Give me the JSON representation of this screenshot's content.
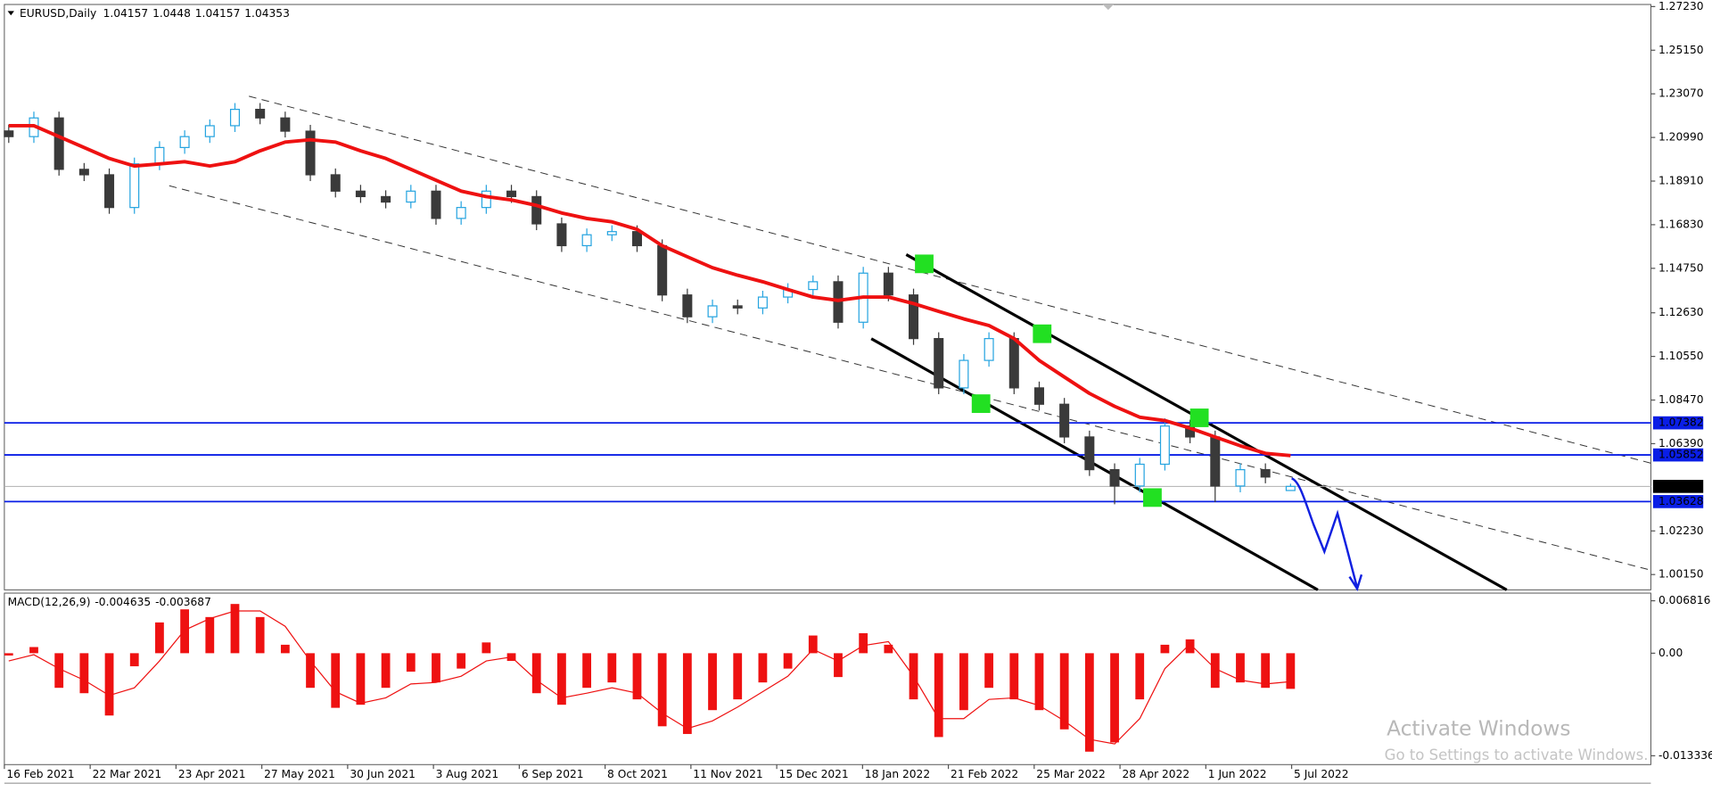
{
  "chart_data": {
    "type": "candlestick",
    "symbol": "EURUSD,Daily",
    "up_color": "#26a4e0",
    "down_color": "#3a3a3a",
    "open": [
      1.213,
      1.2103,
      1.2192,
      1.1947,
      1.1921,
      1.1765,
      1.1973,
      1.2051,
      1.2103,
      1.2155,
      1.2233,
      1.2192,
      1.2129,
      1.1921,
      1.1843,
      1.1817,
      1.1791,
      1.1843,
      1.1713,
      1.1765,
      1.1843,
      1.1817,
      1.1687,
      1.1583,
      1.1635,
      1.165,
      1.1583,
      1.1348,
      1.1244,
      1.1296,
      1.1286,
      1.1338,
      1.1374,
      1.1411,
      1.1218,
      1.1452,
      1.1348,
      1.114,
      1.0905,
      1.1036,
      1.114,
      1.0905,
      1.0827,
      1.0671,
      1.0515,
      1.0437,
      1.0541,
      1.0723,
      1.0671,
      1.0437,
      1.0515,
      1.04157
    ],
    "high": [
      1.216,
      1.2222,
      1.2222,
      1.1977,
      1.1951,
      1.2003,
      1.2081,
      1.2133,
      1.2185,
      1.2263,
      1.2263,
      1.2222,
      1.2159,
      1.1951,
      1.1873,
      1.1847,
      1.1873,
      1.1873,
      1.1795,
      1.1873,
      1.1873,
      1.1847,
      1.1717,
      1.1665,
      1.168,
      1.168,
      1.1613,
      1.1378,
      1.1326,
      1.1326,
      1.1368,
      1.1404,
      1.1441,
      1.1441,
      1.1482,
      1.1482,
      1.1378,
      1.117,
      1.1066,
      1.117,
      1.117,
      1.0935,
      1.0857,
      1.0701,
      1.0545,
      1.0571,
      1.076,
      1.0753,
      1.0701,
      1.0545,
      1.0545,
      1.0448
    ],
    "low": [
      1.2073,
      1.2073,
      1.1917,
      1.1891,
      1.1735,
      1.1735,
      1.1943,
      1.2021,
      1.2073,
      1.2125,
      1.2162,
      1.2099,
      1.1891,
      1.1813,
      1.1787,
      1.1761,
      1.1761,
      1.1683,
      1.1683,
      1.1735,
      1.1787,
      1.1657,
      1.1553,
      1.1553,
      1.1605,
      1.1553,
      1.1318,
      1.1214,
      1.1214,
      1.1256,
      1.1256,
      1.1308,
      1.1344,
      1.1188,
      1.1188,
      1.1318,
      1.111,
      1.0875,
      1.0875,
      1.1006,
      1.0875,
      1.0797,
      1.0641,
      1.0485,
      1.035,
      1.0407,
      1.0511,
      1.0641,
      1.036,
      1.0407,
      1.045,
      1.04157
    ],
    "close": [
      1.2103,
      1.2192,
      1.1947,
      1.1921,
      1.1765,
      1.1973,
      1.2051,
      1.2103,
      1.2155,
      1.2233,
      1.2192,
      1.2129,
      1.1921,
      1.1843,
      1.1817,
      1.1791,
      1.1843,
      1.1713,
      1.1765,
      1.1843,
      1.1817,
      1.1687,
      1.1583,
      1.1635,
      1.165,
      1.1583,
      1.1348,
      1.1244,
      1.1296,
      1.1286,
      1.1338,
      1.1374,
      1.1411,
      1.1218,
      1.1452,
      1.1348,
      1.114,
      1.0905,
      1.1036,
      1.114,
      1.0905,
      1.0827,
      1.0671,
      1.0515,
      1.0437,
      1.0541,
      1.0723,
      1.0671,
      1.0437,
      1.0515,
      1.048,
      1.04353
    ],
    "moving_average": {
      "color": "#ee1111",
      "values": [
        1.2155,
        1.2155,
        1.2103,
        1.2051,
        1.1999,
        1.1963,
        1.1973,
        1.1983,
        1.1963,
        1.1983,
        1.2035,
        1.2077,
        1.2088,
        1.2077,
        1.2035,
        1.1999,
        1.1947,
        1.1895,
        1.1843,
        1.1817,
        1.1801,
        1.1775,
        1.1739,
        1.1713,
        1.1697,
        1.1661,
        1.1583,
        1.153,
        1.1478,
        1.1442,
        1.1411,
        1.1374,
        1.1338,
        1.1322,
        1.1338,
        1.1338,
        1.1307,
        1.127,
        1.1234,
        1.1202,
        1.114,
        1.1036,
        1.0957,
        1.0879,
        1.0817,
        1.0765,
        1.0749,
        1.0713,
        1.0671,
        1.0629,
        1.0593,
        1.0582
      ]
    },
    "levels": [
      {
        "value": 1.07382,
        "color": "#0a1ee6"
      },
      {
        "value": 1.05852,
        "color": "#0a1ee6"
      },
      {
        "value": 1.03628,
        "color": "#0a1ee6"
      }
    ],
    "ylim": [
      0.9942,
      1.2733
    ],
    "yticks": [
      {
        "value": 1.2723,
        "label": "1.27230"
      },
      {
        "value": 1.2515,
        "label": "1.25150"
      },
      {
        "value": 1.2307,
        "label": "1.23070"
      },
      {
        "value": 1.2099,
        "label": "1.20990"
      },
      {
        "value": 1.1891,
        "label": "1.18910"
      },
      {
        "value": 1.1683,
        "label": "1.16830"
      },
      {
        "value": 1.1475,
        "label": "1.14750"
      },
      {
        "value": 1.1263,
        "label": "1.12630"
      },
      {
        "value": 1.1055,
        "label": "1.10550"
      },
      {
        "value": 1.0847,
        "label": "1.08470"
      },
      {
        "value": 1.0639,
        "label": "1.06390"
      },
      {
        "value": 1.0223,
        "label": "1.02230"
      },
      {
        "value": 1.0015,
        "label": "1.00150"
      }
    ],
    "x_labels": [
      "16 Feb 2021",
      "22 Mar 2021",
      "23 Apr 2021",
      "27 May 2021",
      "30 Jun 2021",
      "3 Aug 2021",
      "6 Sep 2021",
      "8 Oct 2021",
      "11 Nov 2021",
      "15 Dec 2021",
      "18 Jan 2022",
      "21 Feb 2022",
      "25 Mar 2022",
      "28 Apr 2022",
      "1 Jun 2022",
      "5 Jul 2022"
    ],
    "macd": {
      "title": "MACD(12,26,9)",
      "color": "#ee1111",
      "histogram": [
        -0.0003,
        0.0008,
        -0.0045,
        -0.0052,
        -0.0081,
        -0.0017,
        0.004,
        0.0057,
        0.0047,
        0.0064,
        0.0047,
        0.0011,
        -0.0045,
        -0.0071,
        -0.0067,
        -0.0045,
        -0.0024,
        -0.0038,
        -0.002,
        0.0014,
        -0.001,
        -0.0052,
        -0.0067,
        -0.0045,
        -0.0038,
        -0.006,
        -0.0095,
        -0.0105,
        -0.0074,
        -0.006,
        -0.0038,
        -0.002,
        0.0023,
        -0.0031,
        0.0026,
        0.0011,
        -0.006,
        -0.0109,
        -0.0074,
        -0.0045,
        -0.006,
        -0.0074,
        -0.0099,
        -0.0128,
        -0.0116,
        -0.006,
        0.0011,
        0.0018,
        -0.0045,
        -0.0038,
        -0.0045,
        -0.004635
      ],
      "signal": [
        -0.001,
        -0.0002,
        -0.002,
        -0.0035,
        -0.0055,
        -0.0045,
        -0.001,
        0.003,
        0.0045,
        0.0055,
        0.0055,
        0.0035,
        -0.001,
        -0.005,
        -0.0065,
        -0.0058,
        -0.004,
        -0.0038,
        -0.003,
        -0.001,
        -0.0005,
        -0.0035,
        -0.0058,
        -0.0052,
        -0.0045,
        -0.0052,
        -0.0078,
        -0.0098,
        -0.0088,
        -0.007,
        -0.005,
        -0.003,
        0.0005,
        -0.001,
        0.001,
        0.0015,
        -0.003,
        -0.0085,
        -0.0085,
        -0.006,
        -0.0058,
        -0.0068,
        -0.0088,
        -0.0112,
        -0.0118,
        -0.0085,
        -0.002,
        0.0012,
        -0.002,
        -0.0035,
        -0.004,
        -0.003687
      ],
      "ylim": [
        -0.01448,
        0.00781
      ],
      "yticks": [
        0.006816,
        {
          "value": 0,
          "label": "0.00"
        },
        -0.013336
      ]
    }
  },
  "watermark": {
    "title": "Activate Windows",
    "subtitle": "Go to Settings to activate Windows."
  }
}
